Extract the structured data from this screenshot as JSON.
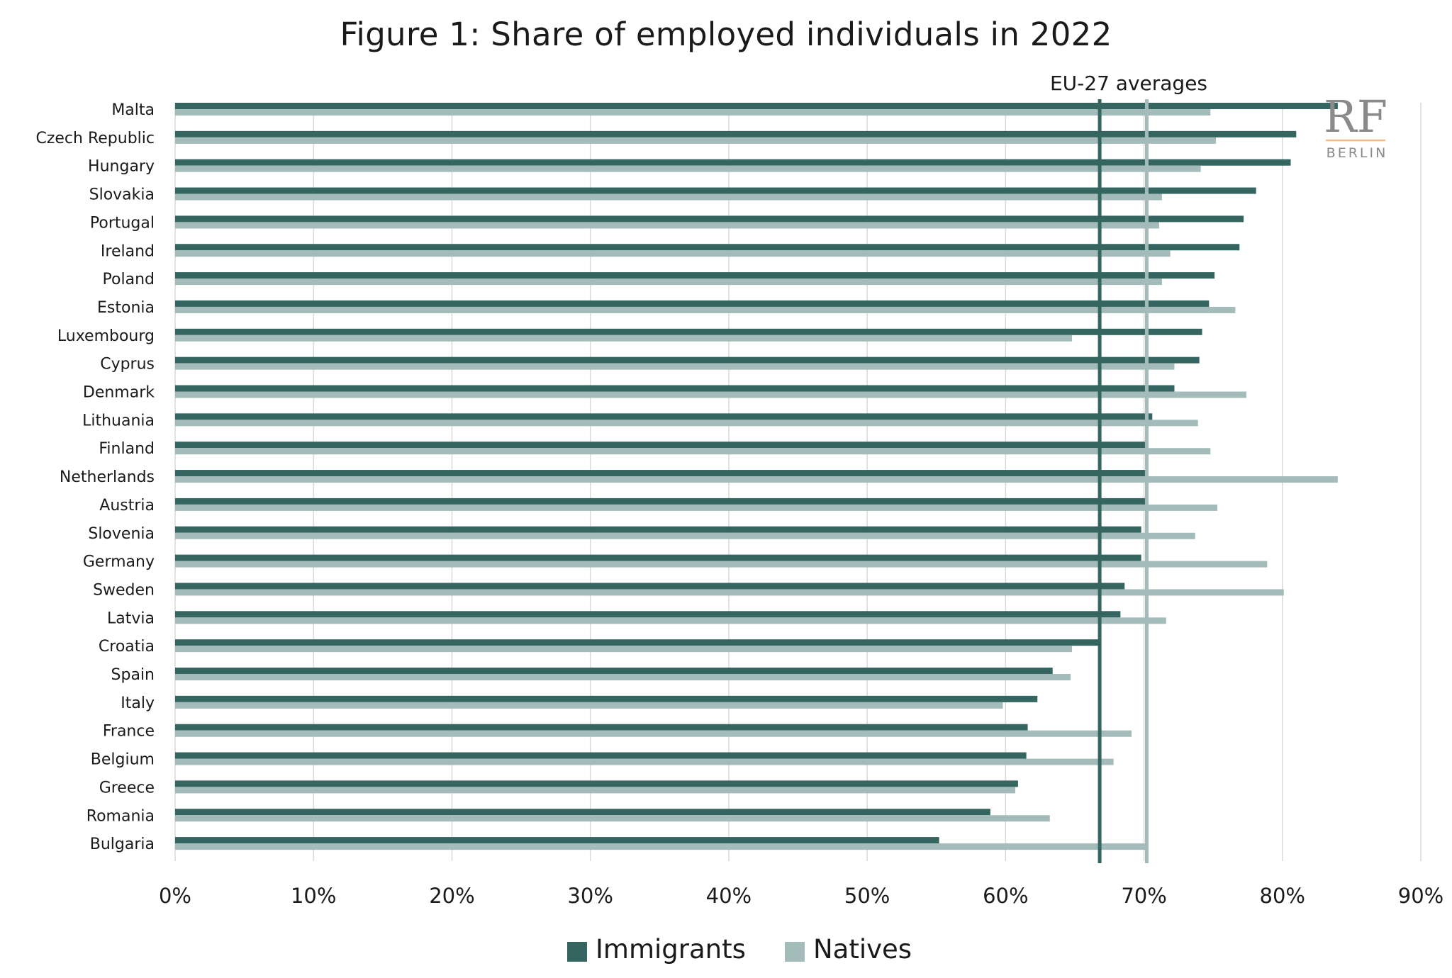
{
  "chart_data": {
    "type": "bar",
    "orientation": "horizontal",
    "title": "Figure 1: Share of employed individuals in 2022",
    "categories": [
      "Malta",
      "Czech Republic",
      "Hungary",
      "Slovakia",
      "Portugal",
      "Ireland",
      "Poland",
      "Estonia",
      "Luxembourg",
      "Cyprus",
      "Denmark",
      "Lithuania",
      "Finland",
      "Netherlands",
      "Austria",
      "Slovenia",
      "Germany",
      "Sweden",
      "Latvia",
      "Croatia",
      "Spain",
      "Italy",
      "France",
      "Belgium",
      "Greece",
      "Romania",
      "Bulgaria"
    ],
    "series": [
      {
        "name": "Immigrants",
        "color": "#346560",
        "values": [
          84.0,
          81.0,
          80.6,
          78.1,
          77.2,
          76.9,
          75.1,
          74.7,
          74.2,
          74.0,
          72.2,
          70.6,
          70.2,
          70.2,
          70.2,
          69.8,
          69.8,
          68.6,
          68.3,
          66.8,
          63.4,
          62.3,
          61.6,
          61.5,
          60.9,
          58.9,
          55.2
        ]
      },
      {
        "name": "Natives",
        "color": "#a4bcb9",
        "values": [
          74.8,
          75.2,
          74.1,
          71.3,
          71.1,
          71.9,
          71.3,
          76.6,
          64.8,
          72.2,
          77.4,
          73.9,
          74.8,
          84.0,
          75.3,
          73.7,
          78.9,
          80.1,
          71.6,
          64.8,
          64.7,
          59.8,
          69.1,
          67.8,
          60.7,
          63.2,
          70.1
        ]
      }
    ],
    "reference_lines": [
      {
        "series": "Immigrants",
        "value": 66.8,
        "color": "#346560"
      },
      {
        "series": "Natives",
        "value": 70.2,
        "color": "#a4bcb9"
      }
    ],
    "annotation": "EU-27 averages",
    "xlim": [
      0,
      90
    ],
    "xticks": [
      0,
      10,
      20,
      30,
      40,
      50,
      60,
      70,
      80,
      90
    ],
    "xtick_labels": [
      "0%",
      "10%",
      "20%",
      "30%",
      "40%",
      "50%",
      "60%",
      "70%",
      "80%",
      "90%"
    ],
    "xlabel": "",
    "ylabel": "",
    "grid": "vertical",
    "legend_position": "bottom"
  },
  "logo": {
    "mark": "RF",
    "subtitle": "BERLIN"
  }
}
